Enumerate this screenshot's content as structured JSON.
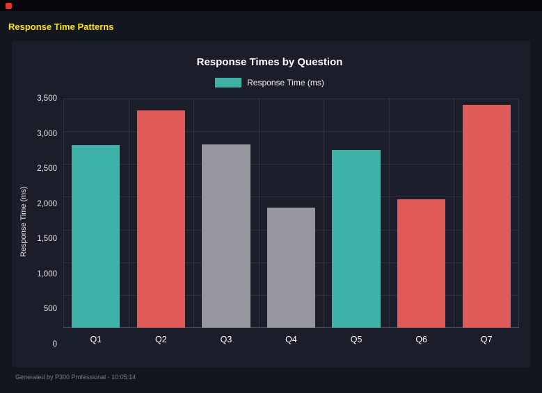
{
  "header": {
    "title": "Response Time Patterns"
  },
  "footer": {
    "text": "Generated by P300 Professional - 10:05:14"
  },
  "colors": {
    "background": "#14161f",
    "panel": "#1b1e2a",
    "title_yellow": "#ffe400",
    "teal": "#3fb3a9",
    "red": "#e15b5b",
    "gray": "#96969e",
    "indicator_red": "#e0342c"
  },
  "chart_data": {
    "type": "bar",
    "title": "Response Times by Question",
    "legend": [
      {
        "label": "Response Time (ms)",
        "color": "#3fb3a9"
      }
    ],
    "legend_position": "top",
    "categories": [
      "Q1",
      "Q2",
      "Q3",
      "Q4",
      "Q5",
      "Q6",
      "Q7"
    ],
    "series": [
      {
        "name": "Response Time (ms)",
        "values": [
          2790,
          3320,
          2800,
          1840,
          2720,
          1960,
          3400
        ]
      }
    ],
    "bar_colors": [
      "#3fb3a9",
      "#e15b5b",
      "#96969e",
      "#96969e",
      "#3fb3a9",
      "#e15b5b",
      "#e15b5b"
    ],
    "xlabel": "",
    "ylabel": "Response Time (ms)",
    "ylim": [
      0,
      3500
    ],
    "ytick_values": [
      0,
      500,
      1000,
      1500,
      2000,
      2500,
      3000,
      3500
    ],
    "ytick_labels": [
      "0",
      "500",
      "1,000",
      "1,500",
      "2,000",
      "2,500",
      "3,000",
      "3,500"
    ],
    "grid": true
  }
}
